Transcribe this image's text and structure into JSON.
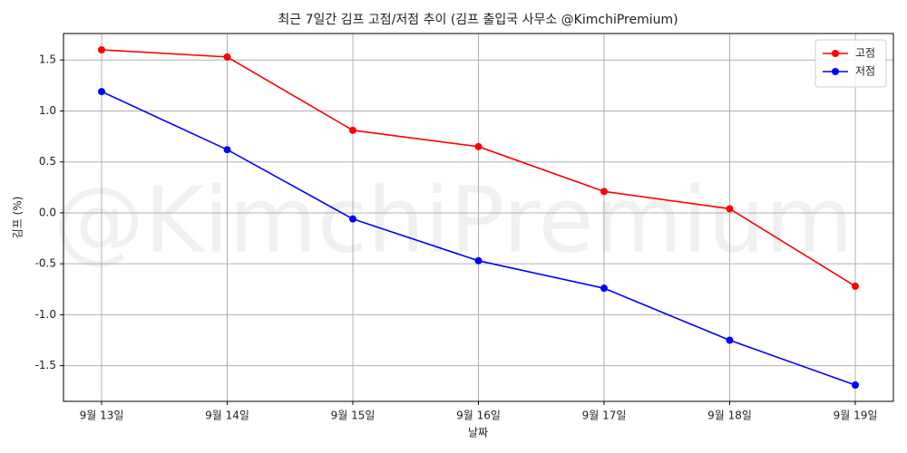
{
  "chart_data": {
    "type": "line",
    "title": "최근 7일간 김프 고점/저점 추이 (김프 출입국 사무소 @KimchiPremium)",
    "watermark": "@KimchiPremium",
    "x_label": "날짜",
    "y_label": "김프 (%)",
    "categories": [
      "9월 13일",
      "9월 14일",
      "9월 15일",
      "9월 16일",
      "9월 17일",
      "9월 18일",
      "9월 19일"
    ],
    "series": [
      {
        "name": "고점",
        "color": "#ff0000",
        "values": [
          1.6,
          1.53,
          0.81,
          0.65,
          0.21,
          0.04,
          -0.72
        ]
      },
      {
        "name": "저점",
        "color": "#0000ff",
        "values": [
          1.19,
          0.62,
          -0.06,
          -0.47,
          -0.74,
          -1.25,
          -1.69
        ]
      }
    ],
    "ylim": [
      -1.85,
      1.76
    ],
    "yticks": [
      -1.5,
      {
        "value": -1.0,
        "label": "-1.0"
      },
      -0.5,
      {
        "value": 0,
        "label": "0.0"
      },
      0.5,
      {
        "value": 1.0,
        "label": "1.0"
      },
      1.5
    ],
    "grid": true,
    "legend": "upper right"
  }
}
